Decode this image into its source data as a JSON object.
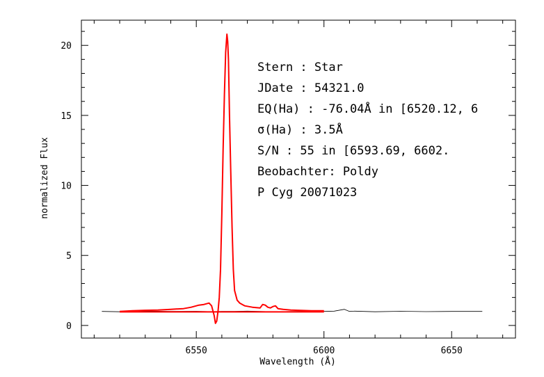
{
  "chart_data": {
    "type": "line",
    "title": "",
    "xlabel": "Wavelength (Å)",
    "ylabel": "normalized Flux",
    "xlim": [
      6505,
      6675
    ],
    "ylim": [
      -0.9,
      21.8
    ],
    "xticks": [
      6550,
      6600,
      6650
    ],
    "yticks": [
      0,
      5,
      10,
      15,
      20
    ],
    "grid": false,
    "annotations": [
      "Stern   : Star",
      "JDate   : 54321.0",
      "EQ(Ha) : -76.04Å in [6520.12, 6",
      "σ(Ha)   : 3.5Å",
      "S/N     : 55 in [6593.69, 6602.",
      "Beobachter: Poldy",
      "P Cyg 20071023"
    ],
    "series": [
      {
        "color": "#000000",
        "x": [
          6513,
          6520,
          6530,
          6540,
          6550,
          6556,
          6560,
          6565,
          6570,
          6580,
          6590,
          6600,
          6604,
          6608,
          6610,
          6612,
          6620,
          6630,
          6640,
          6650,
          6660,
          6662
        ],
        "y": [
          1.0,
          0.98,
          1.02,
          1.0,
          1.01,
          0.99,
          1.0,
          1.0,
          1.02,
          0.98,
          1.0,
          1.0,
          1.02,
          1.15,
          1.0,
          1.02,
          0.98,
          1.01,
          0.99,
          1.0,
          1.0,
          1.0
        ]
      },
      {
        "color": "#ff0000",
        "x": [
          6520,
          6525,
          6530,
          6535,
          6540,
          6545,
          6548,
          6551,
          6553,
          6555,
          6556,
          6557,
          6557.5,
          6558,
          6558.5,
          6559,
          6559.5,
          6560,
          6560.5,
          6561,
          6561.5,
          6562,
          6562.3,
          6562.6,
          6563,
          6563.5,
          6564,
          6564.5,
          6565,
          6566,
          6567,
          6569,
          6572,
          6575,
          6576,
          6577,
          6578,
          6579,
          6580,
          6581,
          6582,
          6584,
          6587,
          6590,
          6595,
          6600
        ],
        "y": [
          1.0,
          1.05,
          1.08,
          1.1,
          1.15,
          1.2,
          1.3,
          1.45,
          1.5,
          1.6,
          1.4,
          0.7,
          0.15,
          0.3,
          1.0,
          2.0,
          4.0,
          8.0,
          12.5,
          16.5,
          19.5,
          20.8,
          20.3,
          19.0,
          15.0,
          11.0,
          7.0,
          4.0,
          2.5,
          1.8,
          1.6,
          1.4,
          1.3,
          1.25,
          1.5,
          1.45,
          1.3,
          1.25,
          1.35,
          1.4,
          1.2,
          1.15,
          1.1,
          1.08,
          1.05,
          1.05
        ]
      },
      {
        "color": "#ff0000",
        "x": [
          6520,
          6600
        ],
        "y": [
          0.97,
          0.97
        ]
      }
    ]
  }
}
